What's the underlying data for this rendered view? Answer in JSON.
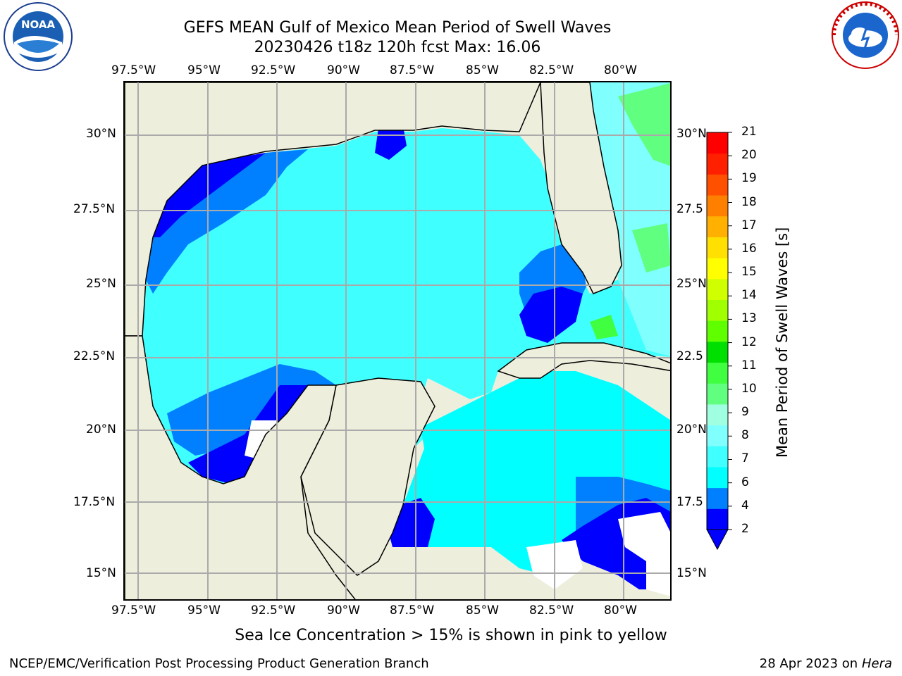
{
  "header": {
    "title_line1": "GEFS MEAN Gulf of Mexico Mean Period of Swell Waves",
    "title_line2": "20230426 t18z 120h fcst   Max: 16.06"
  },
  "logos": {
    "left_logo_text": "NOAA",
    "right_logo_text": "NATIONAL WEATHER SERVICE"
  },
  "map": {
    "lon_ticks": [
      "97.5°W",
      "95°W",
      "92.5°W",
      "90°W",
      "87.5°W",
      "85°W",
      "82.5°W",
      "80°W"
    ],
    "lat_ticks_left": [
      "30°N",
      "27.5°N",
      "25°N",
      "22.5°N",
      "20°N",
      "17.5°N",
      "15°N"
    ],
    "lat_ticks_right": [
      "30°N",
      "27.5",
      "25°N",
      "22.5",
      "20°N",
      "17.5",
      "15°N"
    ],
    "colors": {
      "land": "#eeeedd",
      "missing": "#ffffff",
      "grid": "#aaaaaa"
    }
  },
  "colorbar": {
    "label": "Mean Period of Swell Waves [s]",
    "ticks": [
      "2",
      "4",
      "6",
      "7",
      "8",
      "9",
      "10",
      "11",
      "12",
      "13",
      "14",
      "15",
      "16",
      "17",
      "18",
      "19",
      "20",
      "21"
    ],
    "colors": [
      "#0000ff",
      "#0080ff",
      "#00ffff",
      "#40ffff",
      "#80ffff",
      "#a0ffe0",
      "#60ff80",
      "#40ff40",
      "#00e000",
      "#60ff00",
      "#a0ff00",
      "#d0ff00",
      "#ffff00",
      "#ffe000",
      "#ffb000",
      "#ff8000",
      "#ff5000",
      "#ff2000",
      "#ff0000"
    ]
  },
  "footer": {
    "note": "Sea Ice Concentration > 15% is shown in pink to yellow",
    "producer": "NCEP/EMC/Verification Post Processing Product Generation Branch",
    "date_prefix": "28 Apr 2023 on ",
    "host": "Hera"
  }
}
